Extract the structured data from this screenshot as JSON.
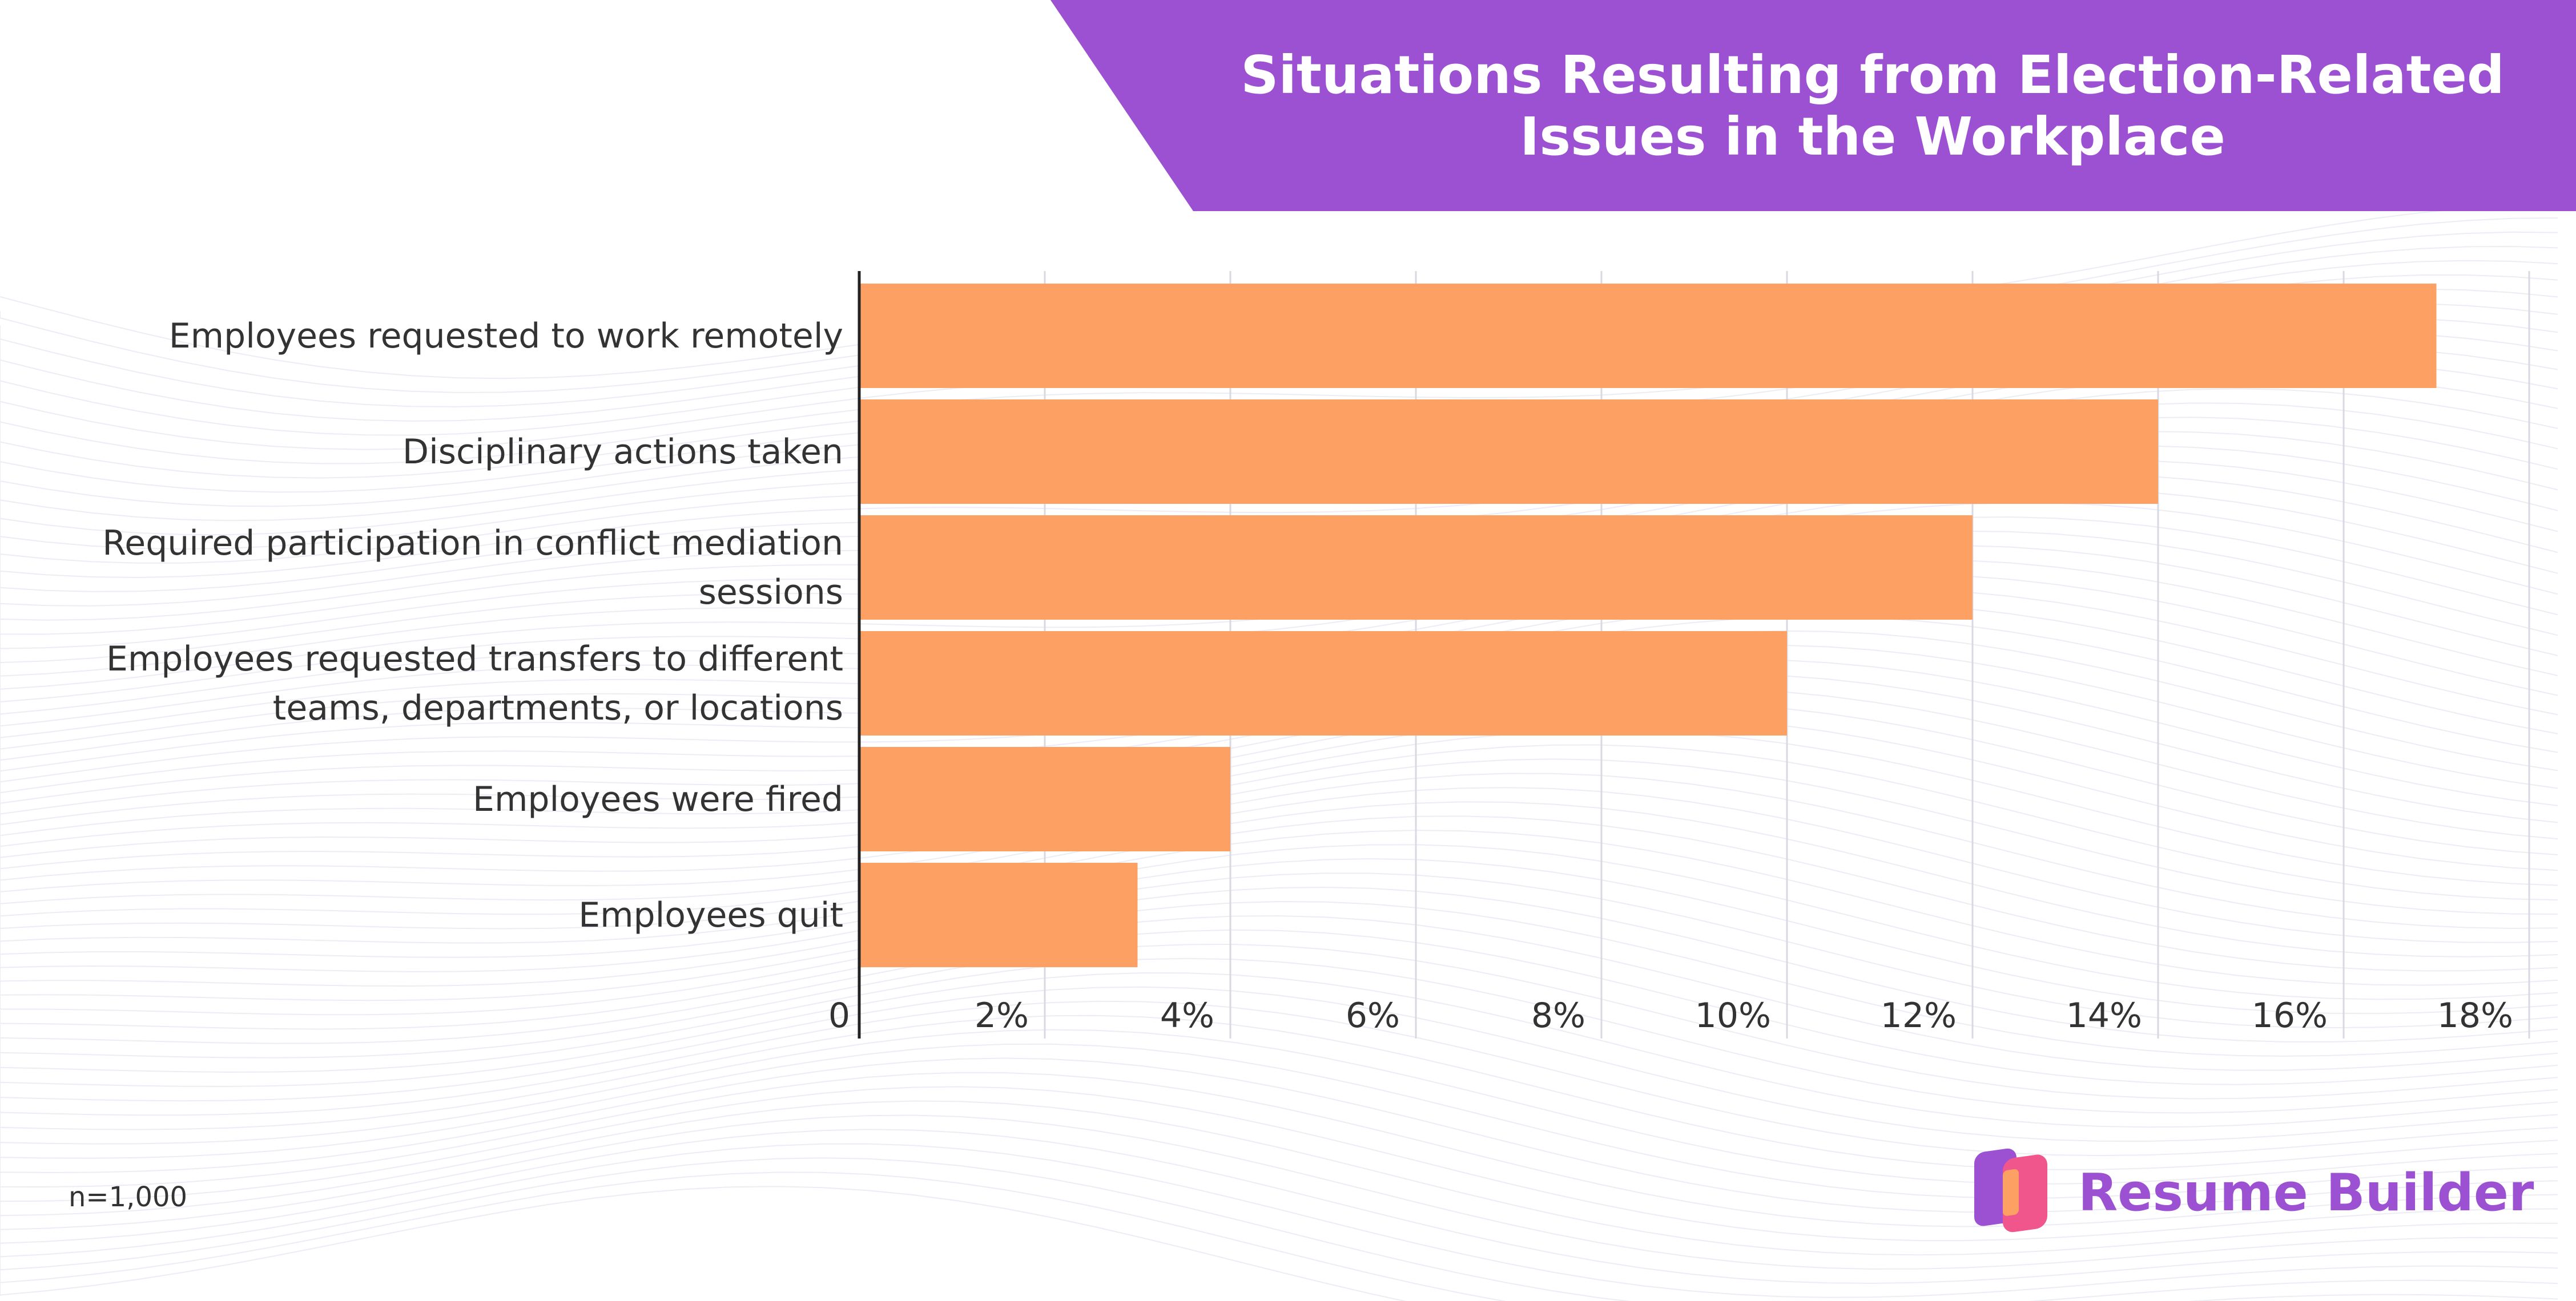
{
  "chart_data": {
    "type": "bar",
    "orientation": "horizontal",
    "title": "Situations Resulting from Election-Related Issues in the Workplace",
    "categories": [
      "Employees requested to work remotely",
      "Disciplinary actions taken",
      "Required participation in conflict mediation sessions",
      "Employees requested transfers to different teams, departments, or locations",
      "Employees were fired",
      "Employees quit"
    ],
    "values": [
      17,
      14,
      12,
      10,
      4,
      3
    ],
    "xlim": [
      0,
      18
    ],
    "xticks": [
      "0",
      "2%",
      "4%",
      "6%",
      "8%",
      "10%",
      "12%",
      "14%",
      "16%",
      "18%"
    ],
    "grid": true,
    "xlabel": "",
    "ylabel": ""
  },
  "note": "n=1,000",
  "brand": {
    "name": "Resume Builder"
  },
  "colors": {
    "bar": "#fda063",
    "banner": "#9b51d1",
    "brand": "#9b51d1",
    "grid": "#d9d9e3",
    "text": "#333333"
  }
}
